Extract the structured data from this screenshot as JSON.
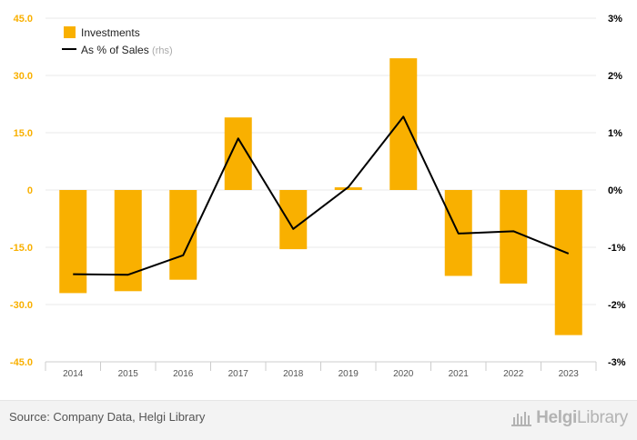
{
  "chart_data": {
    "type": "bar",
    "categories": [
      "2014",
      "2015",
      "2016",
      "2017",
      "2018",
      "2019",
      "2020",
      "2021",
      "2022",
      "2023"
    ],
    "series": [
      {
        "name": "Investments",
        "type": "bar",
        "axis": "left",
        "color": "#f9b000",
        "values": [
          -27.0,
          -26.5,
          -23.5,
          19.0,
          -15.5,
          0.7,
          34.5,
          -22.5,
          -24.5,
          -38.0
        ]
      },
      {
        "name": "As % of Sales",
        "type": "line",
        "axis": "right",
        "color": "#000000",
        "values": [
          -1.47,
          -1.48,
          -1.14,
          0.9,
          -0.68,
          0.05,
          1.28,
          -0.76,
          -0.72,
          -1.11
        ]
      }
    ],
    "legend_suffix": "(rhs)",
    "legend_position": "top-left",
    "left_axis": {
      "ticks": [
        "45.0",
        "30.0",
        "15.0",
        "0",
        "-15.0",
        "-30.0",
        "-45.0"
      ],
      "range": [
        -45,
        45
      ],
      "color": "#f9b000"
    },
    "right_axis": {
      "ticks": [
        "3%",
        "2%",
        "1%",
        "0%",
        "-1%",
        "-2%",
        "-3%"
      ],
      "range": [
        -3,
        3
      ]
    },
    "grid": true
  },
  "footer": {
    "source": "Source: Company Data, Helgi Library",
    "logo_bold": "Helgi",
    "logo_light": "Library"
  }
}
